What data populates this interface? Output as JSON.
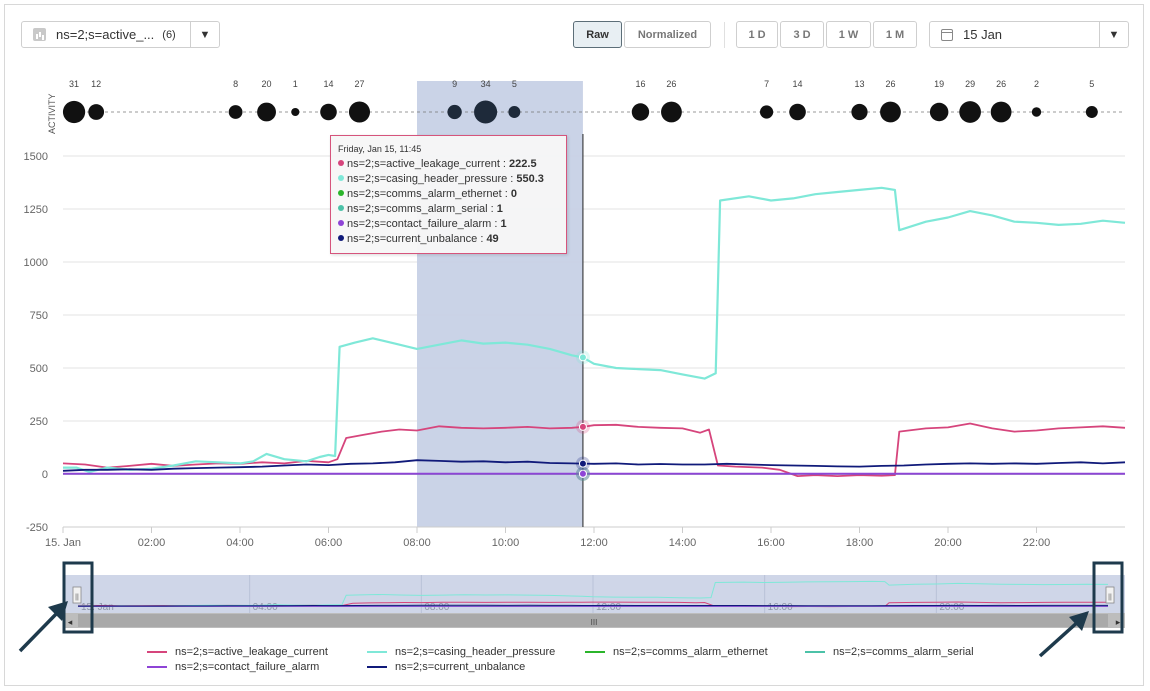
{
  "toolbar": {
    "series_label": "ns=2;s=active_...",
    "series_count": "(6)",
    "raw_label": "Raw",
    "normalized_label": "Normalized",
    "range_buttons": [
      "1 D",
      "3 D",
      "1 W",
      "1 M"
    ],
    "date_label": "15 Jan",
    "dropdown_icon": "caret-down-icon",
    "date_icon": "calendar-icon",
    "series_icon": "bar-chart-icon"
  },
  "activity": {
    "label": "ACTIVITY",
    "hours": [
      0.25,
      0.75,
      3.9,
      4.6,
      5.25,
      6.0,
      6.7,
      8.85,
      9.55,
      10.2,
      13.05,
      13.75,
      15.9,
      16.6,
      18.0,
      18.7,
      19.8,
      20.5,
      21.2,
      22.0,
      23.25
    ],
    "counts": [
      "31",
      "12",
      "8",
      "20",
      "1",
      "14",
      "27",
      "9",
      "34",
      "5",
      "16",
      "26",
      "7",
      "14",
      "13",
      "26",
      "19",
      "29",
      "26",
      "2",
      "5"
    ]
  },
  "tooltip": {
    "title": "Friday, Jan 15, 11:45",
    "rows": [
      {
        "name": "ns=2;s=active_leakage_current",
        "value": "222.5",
        "color": "#d6457c"
      },
      {
        "name": "ns=2;s=casing_header_pressure",
        "value": "550.3",
        "color": "#7fe8d8"
      },
      {
        "name": "ns=2;s=comms_alarm_ethernet",
        "value": "0",
        "color": "#2bb52b"
      },
      {
        "name": "ns=2;s=comms_alarm_serial",
        "value": "1",
        "color": "#4cc2a8"
      },
      {
        "name": "ns=2;s=contact_failure_alarm",
        "value": "1",
        "color": "#8e44d6"
      },
      {
        "name": "ns=2;s=current_unbalance",
        "value": "49",
        "color": "#101a7a"
      }
    ]
  },
  "chart_data": {
    "type": "line",
    "xlabel": "",
    "ylabel": "",
    "x_ticks": [
      "15. Jan",
      "02:00",
      "04:00",
      "06:00",
      "08:00",
      "10:00",
      "12:00",
      "14:00",
      "16:00",
      "18:00",
      "20:00",
      "22:00"
    ],
    "y_ticks": [
      "1500",
      "1250",
      "1000",
      "750",
      "500",
      "250",
      "0",
      "-250"
    ],
    "ylim": [
      -250,
      1500
    ],
    "xlim_hours": [
      0,
      24
    ],
    "grid": true,
    "legend_position": "bottom",
    "selection_band_hours": [
      8.0,
      11.75
    ],
    "crosshair_hour": 11.75,
    "series": [
      {
        "name": "ns=2;s=active_leakage_current",
        "color": "#d6457c",
        "width": 1.8,
        "points": [
          [
            0,
            50
          ],
          [
            0.5,
            45
          ],
          [
            1,
            30
          ],
          [
            1.5,
            38
          ],
          [
            2,
            48
          ],
          [
            2.5,
            38
          ],
          [
            3,
            45
          ],
          [
            3.5,
            50
          ],
          [
            4,
            48
          ],
          [
            4.5,
            55
          ],
          [
            5,
            50
          ],
          [
            5.5,
            62
          ],
          [
            6.0,
            55
          ],
          [
            6.2,
            70
          ],
          [
            6.4,
            170
          ],
          [
            6.8,
            185
          ],
          [
            7.2,
            200
          ],
          [
            7.6,
            210
          ],
          [
            8,
            205
          ],
          [
            8.5,
            225
          ],
          [
            9,
            218
          ],
          [
            9.5,
            215
          ],
          [
            10,
            218
          ],
          [
            10.5,
            222
          ],
          [
            11,
            215
          ],
          [
            11.5,
            218
          ],
          [
            11.75,
            222
          ],
          [
            12,
            230
          ],
          [
            12.5,
            232
          ],
          [
            13,
            222
          ],
          [
            13.5,
            218
          ],
          [
            14,
            215
          ],
          [
            14.4,
            195
          ],
          [
            14.6,
            210
          ],
          [
            14.8,
            40
          ],
          [
            15.2,
            35
          ],
          [
            15.8,
            30
          ],
          [
            16.2,
            20
          ],
          [
            16.6,
            -10
          ],
          [
            17,
            -5
          ],
          [
            17.5,
            -10
          ],
          [
            18,
            -5
          ],
          [
            18.5,
            -8
          ],
          [
            18.8,
            -5
          ],
          [
            18.9,
            200
          ],
          [
            19.5,
            215
          ],
          [
            20,
            220
          ],
          [
            20.5,
            238
          ],
          [
            21,
            215
          ],
          [
            21.5,
            200
          ],
          [
            22,
            205
          ],
          [
            22.5,
            215
          ],
          [
            23,
            220
          ],
          [
            23.5,
            225
          ],
          [
            24,
            218
          ]
        ]
      },
      {
        "name": "ns=2;s=casing_header_pressure",
        "color": "#7fe8d8",
        "width": 2.2,
        "points": [
          [
            0,
            30
          ],
          [
            0.3,
            30
          ],
          [
            0.6,
            10
          ],
          [
            1,
            30
          ],
          [
            1.5,
            20
          ],
          [
            2,
            25
          ],
          [
            2.5,
            40
          ],
          [
            3,
            60
          ],
          [
            3.5,
            55
          ],
          [
            4,
            50
          ],
          [
            4.3,
            60
          ],
          [
            4.6,
            95
          ],
          [
            5,
            70
          ],
          [
            5.5,
            60
          ],
          [
            5.8,
            80
          ],
          [
            6.0,
            90
          ],
          [
            6.15,
            85
          ],
          [
            6.25,
            600
          ],
          [
            6.6,
            620
          ],
          [
            7,
            640
          ],
          [
            7.5,
            615
          ],
          [
            8,
            590
          ],
          [
            8.5,
            610
          ],
          [
            9,
            630
          ],
          [
            9.5,
            615
          ],
          [
            10,
            620
          ],
          [
            10.5,
            610
          ],
          [
            11,
            590
          ],
          [
            11.5,
            560
          ],
          [
            11.75,
            550
          ],
          [
            12,
            520
          ],
          [
            12.5,
            500
          ],
          [
            13,
            495
          ],
          [
            13.5,
            490
          ],
          [
            14,
            470
          ],
          [
            14.5,
            450
          ],
          [
            14.75,
            475
          ],
          [
            14.85,
            1290
          ],
          [
            15.5,
            1310
          ],
          [
            16,
            1290
          ],
          [
            16.5,
            1300
          ],
          [
            17,
            1320
          ],
          [
            17.5,
            1330
          ],
          [
            18,
            1340
          ],
          [
            18.5,
            1350
          ],
          [
            18.8,
            1340
          ],
          [
            18.9,
            1150
          ],
          [
            19.5,
            1190
          ],
          [
            20,
            1210
          ],
          [
            20.5,
            1240
          ],
          [
            21,
            1220
          ],
          [
            21.5,
            1190
          ],
          [
            22,
            1185
          ],
          [
            22.5,
            1175
          ],
          [
            23,
            1180
          ],
          [
            23.5,
            1195
          ],
          [
            24,
            1185
          ]
        ]
      },
      {
        "name": "ns=2;s=comms_alarm_ethernet",
        "color": "#2bb52b",
        "width": 1.2,
        "points": [
          [
            0,
            0
          ],
          [
            24,
            0
          ]
        ]
      },
      {
        "name": "ns=2;s=comms_alarm_serial",
        "color": "#4cc2a8",
        "width": 1.2,
        "points": [
          [
            0,
            1
          ],
          [
            24,
            1
          ]
        ]
      },
      {
        "name": "ns=2;s=contact_failure_alarm",
        "color": "#8e44d6",
        "width": 2,
        "points": [
          [
            0,
            1
          ],
          [
            24,
            1
          ]
        ]
      },
      {
        "name": "ns=2;s=current_unbalance",
        "color": "#101a7a",
        "width": 1.8,
        "points": [
          [
            0,
            15
          ],
          [
            0.5,
            20
          ],
          [
            1,
            20
          ],
          [
            1.5,
            22
          ],
          [
            2,
            20
          ],
          [
            2.5,
            25
          ],
          [
            3,
            28
          ],
          [
            3.5,
            30
          ],
          [
            4,
            32
          ],
          [
            4.5,
            35
          ],
          [
            5,
            40
          ],
          [
            5.5,
            45
          ],
          [
            6.0,
            42
          ],
          [
            6.5,
            48
          ],
          [
            7,
            50
          ],
          [
            7.5,
            55
          ],
          [
            8,
            65
          ],
          [
            8.5,
            62
          ],
          [
            9,
            58
          ],
          [
            9.5,
            60
          ],
          [
            10,
            55
          ],
          [
            10.5,
            58
          ],
          [
            11,
            52
          ],
          [
            11.5,
            50
          ],
          [
            11.75,
            49
          ],
          [
            12,
            48
          ],
          [
            12.5,
            50
          ],
          [
            13,
            45
          ],
          [
            13.5,
            47
          ],
          [
            14,
            45
          ],
          [
            14.5,
            45
          ],
          [
            15,
            48
          ],
          [
            15.5,
            45
          ],
          [
            16,
            42
          ],
          [
            16.5,
            40
          ],
          [
            17,
            38
          ],
          [
            17.5,
            36
          ],
          [
            18,
            35
          ],
          [
            18.5,
            38
          ],
          [
            19,
            40
          ],
          [
            19.5,
            45
          ],
          [
            20,
            48
          ],
          [
            20.5,
            50
          ],
          [
            21,
            48
          ],
          [
            21.5,
            50
          ],
          [
            22,
            48
          ],
          [
            22.5,
            52
          ],
          [
            23,
            55
          ],
          [
            23.5,
            50
          ],
          [
            24,
            55
          ]
        ]
      }
    ]
  },
  "navigator": {
    "x_labels": [
      "15. Jan",
      "04:00",
      "08:00",
      "12:00",
      "16:00",
      "20:00"
    ],
    "scroll_grip": "III",
    "left_arrow": "◂",
    "right_arrow": "▸",
    "handle_grip": "||"
  }
}
